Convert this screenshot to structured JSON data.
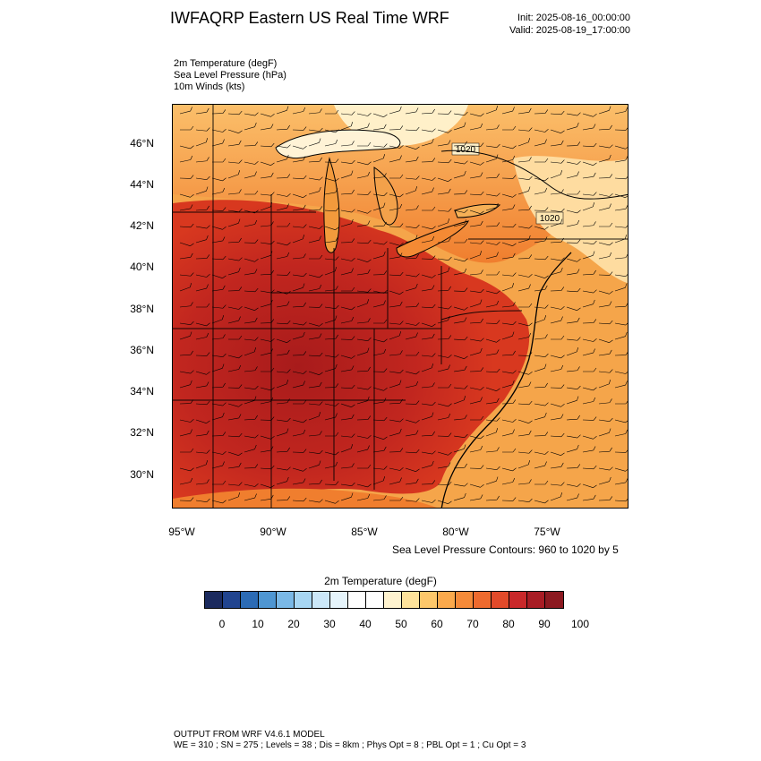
{
  "title": "IWFAQRP Eastern US Real Time WRF",
  "init": "Init: 2025-08-16_00:00:00",
  "valid": "Valid: 2025-08-19_17:00:00",
  "fields": [
    "2m Temperature   (degF)",
    "Sea Level Pressure   (hPa)",
    "10m Winds   (kts)"
  ],
  "map": {
    "lat_labels": [
      "46°N",
      "44°N",
      "42°N",
      "40°N",
      "38°N",
      "36°N",
      "34°N",
      "32°N",
      "30°N"
    ],
    "lon_labels": [
      "95°W",
      "90°W",
      "85°W",
      "80°W",
      "75°W"
    ],
    "contour_labels": [
      "1020",
      "1020"
    ],
    "colors": {
      "ocean_warm": "#f5a54a",
      "land_hot": "#c7291f",
      "land_hottest": "#a81b1b",
      "north_warm": "#f07e2e",
      "north_cool": "#ffd18a",
      "lake_cool": "#fff0c9"
    }
  },
  "contour_note": "Sea Level Pressure Contours: 960 to 1020 by 5",
  "colorbar": {
    "title": "2m Temperature  (degF)",
    "colors": [
      "#1b2a5e",
      "#21448f",
      "#2c6bb5",
      "#4f96d2",
      "#7ab8e6",
      "#a7d6f3",
      "#cbe7f8",
      "#e6f4fb",
      "#ffffff",
      "#ffffff",
      "#fff3cf",
      "#fee39b",
      "#fdc76a",
      "#fba94c",
      "#f58a39",
      "#ee6a2e",
      "#e24a2a",
      "#c9282a",
      "#a81c24",
      "#8c1920"
    ],
    "labels": [
      "0",
      "10",
      "20",
      "30",
      "40",
      "50",
      "60",
      "70",
      "80",
      "90",
      "100"
    ]
  },
  "footer": {
    "line1": "OUTPUT FROM WRF V4.6.1 MODEL",
    "line2": "WE = 310 ; SN = 275 ; Levels = 38 ; Dis = 8km ; Phys Opt = 8 ; PBL Opt = 1 ; Cu Opt = 3"
  }
}
